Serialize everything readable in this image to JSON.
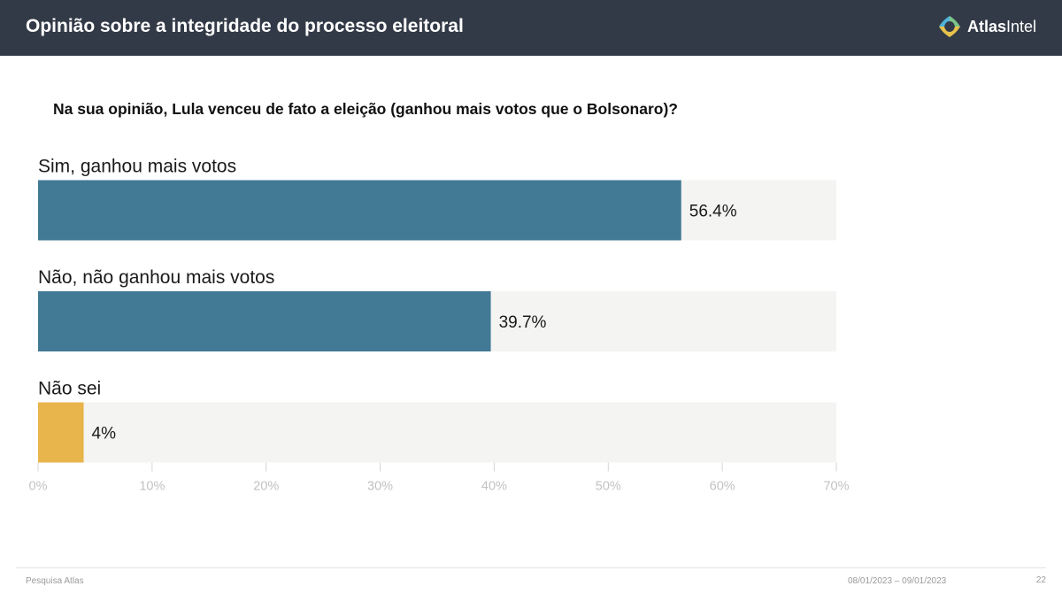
{
  "header": {
    "title": "Opinião sobre a integridade do processo eleitoral",
    "background": "#333a47",
    "logo": {
      "icon": "atlasintel-logo-icon",
      "text_bold": "Atlas",
      "text_regular": "Intel"
    }
  },
  "question": "Na sua opinião, Lula venceu de fato a eleição (ganhou mais votos que o Bolsonaro)?",
  "chart_data": {
    "type": "bar",
    "orientation": "horizontal",
    "categories": [
      "Sim, ganhou mais votos",
      "Não, não ganhou mais votos",
      "Não sei"
    ],
    "values": [
      56.4,
      39.7,
      4
    ],
    "value_labels": [
      "56.4%",
      "39.7%",
      "4%"
    ],
    "colors": [
      "#427a96",
      "#427a96",
      "#e8b44c"
    ],
    "track_color": "#f4f4f2",
    "xlim": [
      0,
      70
    ],
    "xticks": [
      0,
      10,
      20,
      30,
      40,
      50,
      60,
      70
    ],
    "xtick_labels": [
      "0%",
      "10%",
      "20%",
      "30%",
      "40%",
      "50%",
      "60%",
      "70%"
    ],
    "grid": false,
    "legend": "none"
  },
  "footer": {
    "source": "Pesquisa Atlas",
    "dates": "08/01/2023 – 09/01/2023",
    "page": "22"
  }
}
